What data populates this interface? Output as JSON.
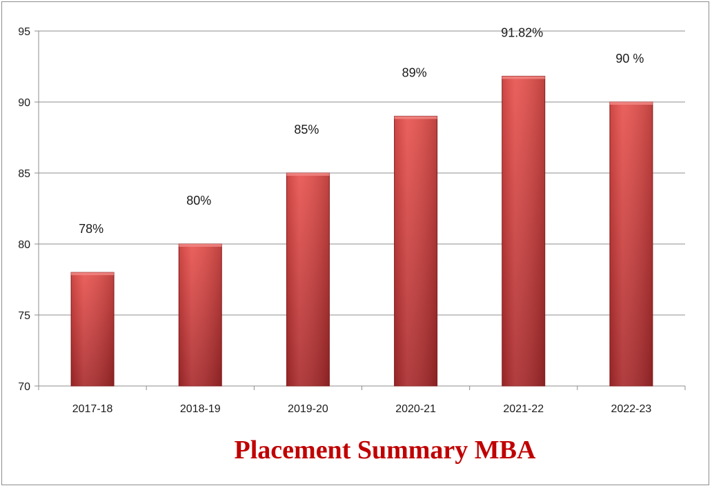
{
  "chart_data": {
    "type": "bar",
    "title": "Placement Summary MBA",
    "xlabel": "",
    "ylabel": "",
    "categories": [
      "2017-18",
      "2018-19",
      "2019-20",
      "2020-21",
      "2021-22",
      "2022-23"
    ],
    "values": [
      78,
      80,
      85,
      89,
      91.82,
      90
    ],
    "data_labels": [
      "78%",
      "80%",
      "85%",
      "89%",
      "91.82%",
      "90 %"
    ],
    "ylim": [
      70,
      95
    ],
    "yticks": [
      70,
      75,
      80,
      85,
      90,
      95
    ],
    "grid": true,
    "legend": "none",
    "colors": {
      "bar_light": "#e8504c",
      "bar_dark": "#a8282a",
      "bar_edge": "#8a1f20",
      "title": "#c00000",
      "grid": "#8c8c8c"
    }
  }
}
